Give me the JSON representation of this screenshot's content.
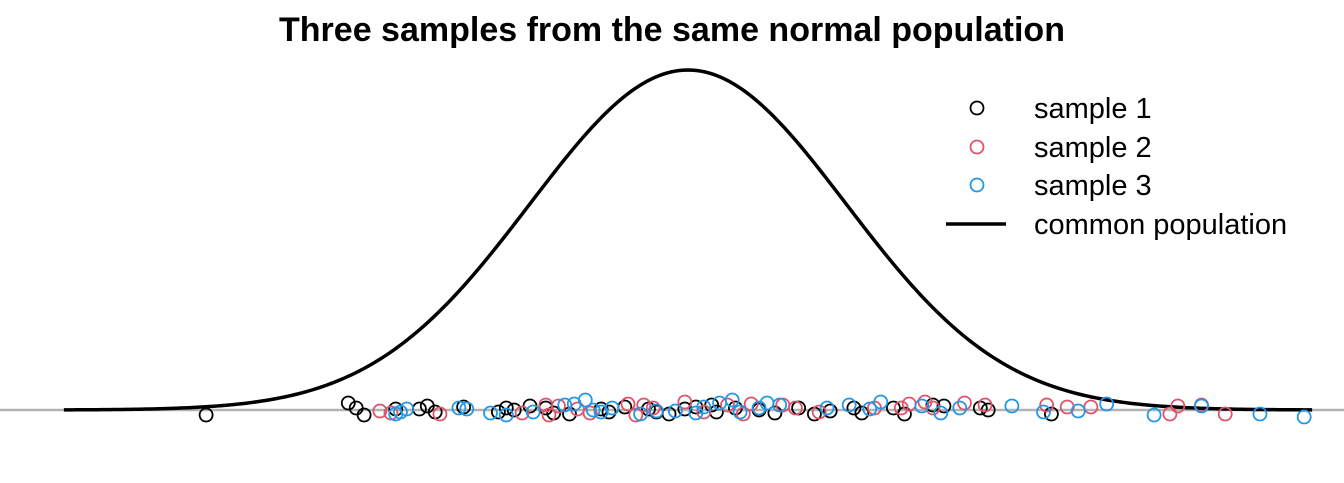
{
  "chart_data": {
    "type": "scatter",
    "title": "Three samples from the same normal population",
    "xlabel": "",
    "ylabel": "",
    "axes_visible": false,
    "grid": false,
    "legend_position": "top-right",
    "xlim": [
      -3.95,
      3.95
    ],
    "population": {
      "name": "common population",
      "distribution": "normal",
      "mean": 0,
      "sd": 1,
      "color": "#000000"
    },
    "baseline_color": "#b3b3b3",
    "series": [
      {
        "name": "sample 1",
        "color": "#000000",
        "points": [
          [
            -3.05,
            -0.05
          ],
          [
            -2.15,
            0.07
          ],
          [
            -2.1,
            0.02
          ],
          [
            -2.05,
            -0.05
          ],
          [
            -1.85,
            0.01
          ],
          [
            -1.7,
            0.01
          ],
          [
            -1.65,
            0.04
          ],
          [
            -1.6,
            -0.02
          ],
          [
            -1.42,
            0.03
          ],
          [
            -1.2,
            -0.02
          ],
          [
            -1.15,
            0.02
          ],
          [
            -1.1,
            0.0
          ],
          [
            -1.0,
            0.04
          ],
          [
            -0.9,
            0.02
          ],
          [
            -0.85,
            -0.03
          ],
          [
            -0.75,
            -0.04
          ],
          [
            -0.55,
            0.01
          ],
          [
            -0.5,
            -0.02
          ],
          [
            -0.4,
            0.03
          ],
          [
            -0.25,
            0.01
          ],
          [
            -0.2,
            -0.02
          ],
          [
            -0.12,
            -0.04
          ],
          [
            -0.02,
            0.01
          ],
          [
            0.05,
            0.03
          ],
          [
            0.15,
            0.05
          ],
          [
            0.18,
            -0.02
          ],
          [
            0.3,
            0.02
          ],
          [
            0.45,
            0.0
          ],
          [
            0.55,
            -0.03
          ],
          [
            0.7,
            0.02
          ],
          [
            0.8,
            -0.04
          ],
          [
            0.9,
            -0.01
          ],
          [
            1.05,
            0.02
          ],
          [
            1.1,
            -0.03
          ],
          [
            1.3,
            0.02
          ],
          [
            1.37,
            -0.04
          ],
          [
            1.55,
            0.05
          ],
          [
            1.62,
            0.04
          ],
          [
            1.85,
            0.02
          ],
          [
            1.9,
            0.0
          ],
          [
            2.3,
            -0.04
          ]
        ]
      },
      {
        "name": "sample 2",
        "color": "#df536b",
        "points": [
          [
            -1.95,
            -0.01
          ],
          [
            -1.88,
            -0.03
          ],
          [
            -1.57,
            -0.04
          ],
          [
            -1.05,
            -0.03
          ],
          [
            -0.9,
            0.05
          ],
          [
            -0.88,
            -0.05
          ],
          [
            -0.82,
            0.04
          ],
          [
            -0.7,
            0.01
          ],
          [
            -0.62,
            -0.03
          ],
          [
            -0.38,
            0.06
          ],
          [
            -0.33,
            -0.05
          ],
          [
            -0.28,
            0.05
          ],
          [
            -0.22,
            0.02
          ],
          [
            -0.02,
            0.08
          ],
          [
            0.1,
            -0.02
          ],
          [
            0.25,
            0.05
          ],
          [
            0.35,
            -0.04
          ],
          [
            0.4,
            0.06
          ],
          [
            0.6,
            0.05
          ],
          [
            0.68,
            0.02
          ],
          [
            0.83,
            -0.02
          ],
          [
            1.18,
            0.02
          ],
          [
            1.35,
            0.02
          ],
          [
            1.4,
            0.06
          ],
          [
            1.5,
            0.08
          ],
          [
            1.55,
            0.02
          ],
          [
            1.75,
            0.07
          ],
          [
            1.88,
            0.05
          ],
          [
            2.27,
            0.05
          ],
          [
            2.4,
            0.03
          ],
          [
            2.55,
            0.03
          ],
          [
            3.05,
            -0.04
          ],
          [
            3.1,
            0.04
          ],
          [
            3.25,
            0.05
          ],
          [
            3.4,
            -0.04
          ]
        ]
      },
      {
        "name": "sample 3",
        "color": "#2297e6",
        "points": [
          [
            -1.85,
            -0.04
          ],
          [
            -1.82,
            -0.02
          ],
          [
            -1.78,
            0.01
          ],
          [
            -1.45,
            0.02
          ],
          [
            -1.4,
            0.01
          ],
          [
            -1.25,
            -0.03
          ],
          [
            -1.15,
            -0.05
          ],
          [
            -0.98,
            -0.02
          ],
          [
            -0.78,
            0.05
          ],
          [
            -0.72,
            0.06
          ],
          [
            -0.65,
            0.1
          ],
          [
            -0.6,
            0.0
          ],
          [
            -0.55,
            -0.02
          ],
          [
            -0.48,
            0.02
          ],
          [
            -0.3,
            -0.04
          ],
          [
            -0.2,
            -0.01
          ],
          [
            -0.08,
            -0.01
          ],
          [
            0.05,
            -0.03
          ],
          [
            0.1,
            0.03
          ],
          [
            0.2,
            0.07
          ],
          [
            0.28,
            0.1
          ],
          [
            0.33,
            -0.02
          ],
          [
            0.45,
            0.02
          ],
          [
            0.5,
            0.07
          ],
          [
            0.58,
            0.05
          ],
          [
            0.88,
            0.02
          ],
          [
            1.02,
            0.05
          ],
          [
            1.15,
            0.01
          ],
          [
            1.22,
            0.08
          ],
          [
            1.48,
            0.04
          ],
          [
            1.6,
            -0.03
          ],
          [
            1.72,
            0.02
          ],
          [
            2.05,
            0.04
          ],
          [
            2.25,
            -0.02
          ],
          [
            2.47,
            -0.01
          ],
          [
            2.65,
            0.06
          ],
          [
            2.95,
            -0.05
          ],
          [
            3.25,
            0.04
          ],
          [
            3.62,
            -0.04
          ],
          [
            3.9,
            -0.07
          ]
        ]
      }
    ]
  }
}
